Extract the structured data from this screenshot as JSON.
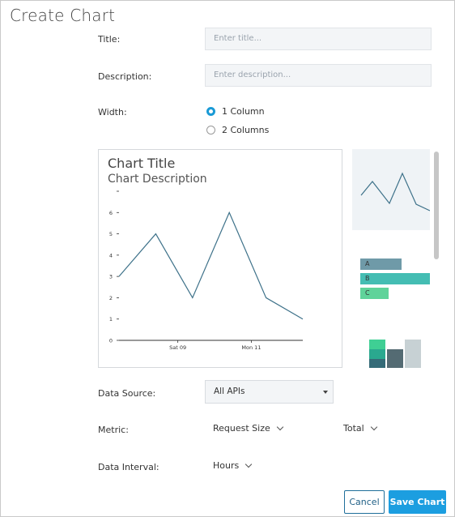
{
  "dialog": {
    "title": "Create Chart"
  },
  "form": {
    "title_label": "Title:",
    "title_placeholder": "Enter title...",
    "description_label": "Description:",
    "description_placeholder": "Enter description...",
    "width_label": "Width:",
    "width_options": [
      {
        "label": "1 Column",
        "selected": true
      },
      {
        "label": "2 Columns",
        "selected": false
      }
    ],
    "data_source_label": "Data Source:",
    "data_source_value": "All APIs",
    "metric_label": "Metric:",
    "metric_value": "Request Size",
    "aggregation_value": "Total",
    "interval_label": "Data Interval:",
    "interval_value": "Hours"
  },
  "preview": {
    "title": "Chart Title",
    "description": "Chart Description"
  },
  "chart_data": {
    "type": "line",
    "title": "Chart Title",
    "subtitle": "Chart Description",
    "x": [
      0,
      1,
      2,
      3,
      4,
      5
    ],
    "values": [
      3,
      5,
      2,
      6,
      2,
      1
    ],
    "x_tick_labels": [
      "Sat 09",
      "Mon 11"
    ],
    "y_ticks": [
      0,
      1,
      2,
      3,
      4,
      5,
      6
    ],
    "ylim": [
      0,
      7
    ],
    "grid": false
  },
  "thumbnails": {
    "bar_labels": [
      "A",
      "B",
      "C"
    ],
    "colors": {
      "bar_a": "#6f9aa8",
      "bar_b": "#44bdb3",
      "bar_c": "#5fd39a",
      "stack_1": "#2aa88f",
      "stack_2": "#546b73",
      "stack_3": "#c7d1d4"
    }
  },
  "buttons": {
    "cancel": "Cancel",
    "save": "Save Chart"
  },
  "colors": {
    "accent": "#1c9ee0",
    "line": "#3d7189"
  }
}
